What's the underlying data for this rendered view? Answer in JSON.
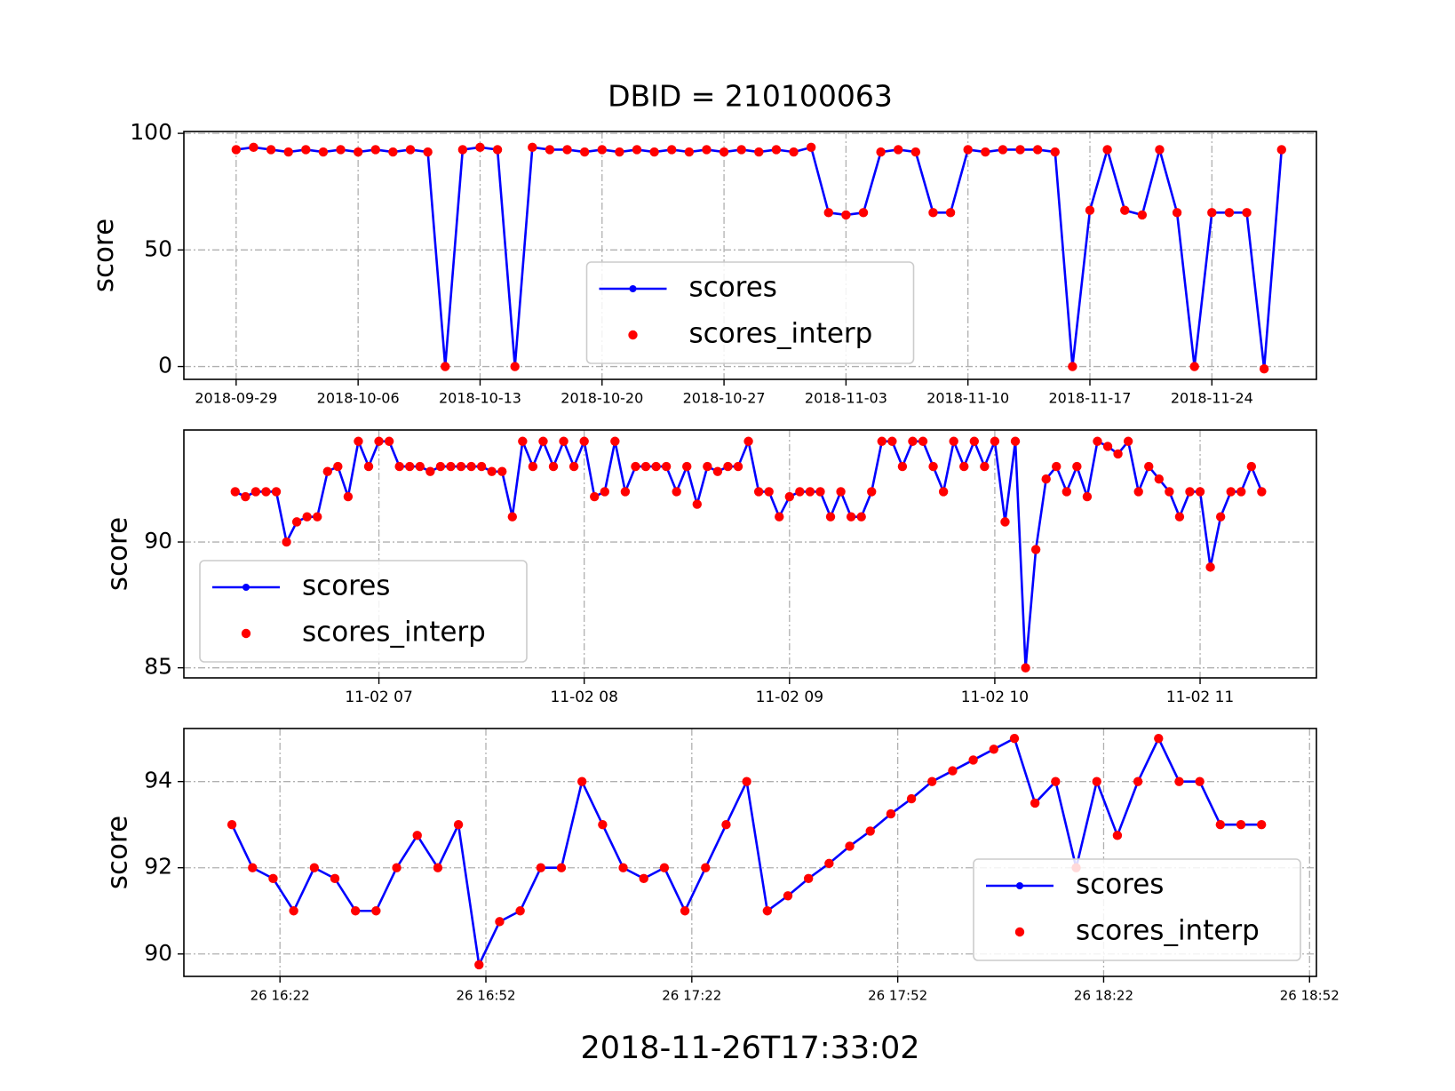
{
  "chart_data": [
    {
      "type": "line",
      "title": "DBID = 210100063",
      "ylabel": "score",
      "grid": true,
      "legend": "lower center",
      "xlim": [
        "2018-09-26",
        "2018-11-30"
      ],
      "ylim": [
        -5.5,
        100.8
      ],
      "xticks": [
        "2018-09-29",
        "2018-10-06",
        "2018-10-13",
        "2018-10-20",
        "2018-10-27",
        "2018-11-03",
        "2018-11-10",
        "2018-11-17",
        "2018-11-24"
      ],
      "yticks": [
        0,
        50,
        100
      ],
      "x": [
        "2018-09-29",
        "2018-09-30",
        "2018-10-01",
        "2018-10-02",
        "2018-10-03",
        "2018-10-04",
        "2018-10-05",
        "2018-10-06",
        "2018-10-07",
        "2018-10-08",
        "2018-10-09",
        "2018-10-10",
        "2018-10-11",
        "2018-10-12",
        "2018-10-13",
        "2018-10-14",
        "2018-10-15",
        "2018-10-16",
        "2018-10-17",
        "2018-10-18",
        "2018-10-19",
        "2018-10-20",
        "2018-10-21",
        "2018-10-22",
        "2018-10-23",
        "2018-10-24",
        "2018-10-25",
        "2018-10-26",
        "2018-10-27",
        "2018-10-28",
        "2018-10-29",
        "2018-10-30",
        "2018-10-31",
        "2018-11-01",
        "2018-11-02",
        "2018-11-03",
        "2018-11-04",
        "2018-11-05",
        "2018-11-06",
        "2018-11-07",
        "2018-11-08",
        "2018-11-09",
        "2018-11-10",
        "2018-11-11",
        "2018-11-12",
        "2018-11-13",
        "2018-11-14",
        "2018-11-15",
        "2018-11-16",
        "2018-11-17",
        "2018-11-18",
        "2018-11-19",
        "2018-11-20",
        "2018-11-21",
        "2018-11-22",
        "2018-11-23",
        "2018-11-24",
        "2018-11-25",
        "2018-11-26",
        "2018-11-27",
        "2018-11-28"
      ],
      "series": [
        {
          "name": "scores",
          "color": "#0000ff",
          "line": true,
          "values": [
            93,
            94,
            93,
            92,
            93,
            92,
            93,
            92,
            93,
            92,
            93,
            92,
            0,
            93,
            94,
            93,
            0,
            94,
            93,
            93,
            92,
            93,
            92,
            93,
            92,
            93,
            92,
            93,
            92,
            93,
            92,
            93,
            92,
            94,
            66,
            65,
            66,
            92,
            93,
            92,
            66,
            66,
            93,
            92,
            93,
            93,
            93,
            92,
            0,
            67,
            93,
            67,
            65,
            93,
            66,
            0,
            66,
            66,
            66,
            -1,
            93
          ]
        },
        {
          "name": "scores_interp",
          "color": "#ff0000",
          "line": false,
          "values": [
            93,
            94,
            93,
            92,
            93,
            92,
            93,
            92,
            93,
            92,
            93,
            92,
            0,
            93,
            94,
            93,
            0,
            94,
            93,
            93,
            92,
            93,
            92,
            93,
            92,
            93,
            92,
            93,
            92,
            93,
            92,
            93,
            92,
            94,
            66,
            65,
            66,
            92,
            93,
            92,
            66,
            66,
            93,
            92,
            93,
            93,
            93,
            92,
            0,
            67,
            93,
            67,
            65,
            93,
            66,
            0,
            66,
            66,
            66,
            -1,
            93
          ]
        }
      ]
    },
    {
      "type": "line",
      "ylabel": "score",
      "grid": true,
      "legend": "lower left",
      "xlim": [
        "11-02 06:03",
        "11-02 11:34"
      ],
      "ylim": [
        84.6,
        94.45
      ],
      "xticks": [
        "11-02 07",
        "11-02 08",
        "11-02 09",
        "11-02 10",
        "11-02 11"
      ],
      "yticks": [
        85,
        90
      ],
      "x": [
        "11-02 06:18",
        "11-02 06:21",
        "11-02 06:24",
        "11-02 06:27",
        "11-02 06:30",
        "11-02 06:33",
        "11-02 06:36",
        "11-02 06:39",
        "11-02 06:42",
        "11-02 06:45",
        "11-02 06:48",
        "11-02 06:51",
        "11-02 06:54",
        "11-02 06:57",
        "11-02 07:00",
        "11-02 07:03",
        "11-02 07:06",
        "11-02 07:09",
        "11-02 07:12",
        "11-02 07:15",
        "11-02 07:18",
        "11-02 07:21",
        "11-02 07:24",
        "11-02 07:27",
        "11-02 07:30",
        "11-02 07:33",
        "11-02 07:36",
        "11-02 07:39",
        "11-02 07:42",
        "11-02 07:45",
        "11-02 07:48",
        "11-02 07:51",
        "11-02 07:54",
        "11-02 07:57",
        "11-02 08:00",
        "11-02 08:03",
        "11-02 08:06",
        "11-02 08:09",
        "11-02 08:12",
        "11-02 08:15",
        "11-02 08:18",
        "11-02 08:21",
        "11-02 08:24",
        "11-02 08:27",
        "11-02 08:30",
        "11-02 08:33",
        "11-02 08:36",
        "11-02 08:39",
        "11-02 08:42",
        "11-02 08:45",
        "11-02 08:48",
        "11-02 08:51",
        "11-02 08:54",
        "11-02 08:57",
        "11-02 09:00",
        "11-02 09:03",
        "11-02 09:06",
        "11-02 09:09",
        "11-02 09:12",
        "11-02 09:15",
        "11-02 09:18",
        "11-02 09:21",
        "11-02 09:24",
        "11-02 09:27",
        "11-02 09:30",
        "11-02 09:33",
        "11-02 09:36",
        "11-02 09:39",
        "11-02 09:42",
        "11-02 09:45",
        "11-02 09:48",
        "11-02 09:51",
        "11-02 09:54",
        "11-02 09:57",
        "11-02 10:00",
        "11-02 10:03",
        "11-02 10:06",
        "11-02 10:09",
        "11-02 10:12",
        "11-02 10:15",
        "11-02 10:18",
        "11-02 10:21",
        "11-02 10:24",
        "11-02 10:27",
        "11-02 10:30",
        "11-02 10:33",
        "11-02 10:36",
        "11-02 10:39",
        "11-02 10:42",
        "11-02 10:45",
        "11-02 10:48",
        "11-02 10:51",
        "11-02 10:54",
        "11-02 10:57",
        "11-02 11:00",
        "11-02 11:03",
        "11-02 11:06",
        "11-02 11:09",
        "11-02 11:12",
        "11-02 11:15",
        "11-02 11:18"
      ],
      "series": [
        {
          "name": "scores",
          "color": "#0000ff",
          "line": true,
          "values": [
            92,
            91.8,
            92,
            92,
            92,
            90,
            90.8,
            91,
            91,
            92.8,
            93,
            91.8,
            94,
            93,
            94,
            94,
            93,
            93,
            93,
            92.8,
            93,
            93,
            93,
            93,
            93,
            92.8,
            92.8,
            91,
            94,
            93,
            94,
            93,
            94,
            93,
            94,
            91.8,
            92,
            94,
            92,
            93,
            93,
            93,
            93,
            92,
            93,
            91.5,
            93,
            92.8,
            93,
            93,
            94,
            92,
            92,
            91,
            91.8,
            92,
            92,
            92,
            91,
            92,
            91,
            91,
            92,
            94,
            94,
            93,
            94,
            94,
            93,
            92,
            94,
            93,
            94,
            93,
            94,
            90.8,
            94,
            85,
            89.7,
            92.5,
            93,
            92,
            93,
            91.8,
            94,
            93.8,
            93.5,
            94,
            92,
            93,
            92.5,
            92,
            91,
            92,
            92,
            89,
            91,
            92,
            92,
            93,
            92
          ]
        },
        {
          "name": "scores_interp",
          "color": "#ff0000",
          "line": false,
          "values": [
            92,
            91.8,
            92,
            92,
            92,
            90,
            90.8,
            91,
            91,
            92.8,
            93,
            91.8,
            94,
            93,
            94,
            94,
            93,
            93,
            93,
            92.8,
            93,
            93,
            93,
            93,
            93,
            92.8,
            92.8,
            91,
            94,
            93,
            94,
            93,
            94,
            93,
            94,
            91.8,
            92,
            94,
            92,
            93,
            93,
            93,
            93,
            92,
            93,
            91.5,
            93,
            92.8,
            93,
            93,
            94,
            92,
            92,
            91,
            91.8,
            92,
            92,
            92,
            91,
            92,
            91,
            91,
            92,
            94,
            94,
            93,
            94,
            94,
            93,
            92,
            94,
            93,
            94,
            93,
            94,
            90.8,
            94,
            85,
            89.7,
            92.5,
            93,
            92,
            93,
            91.8,
            94,
            93.8,
            93.5,
            94,
            92,
            93,
            92.5,
            92,
            91,
            92,
            92,
            89,
            91,
            92,
            92,
            93,
            92
          ]
        }
      ]
    },
    {
      "type": "line",
      "ylabel": "score",
      "xlabel": "2018-11-26T17:33:02",
      "grid": true,
      "legend": "lower right",
      "xlim": [
        "26 16:08",
        "26 18:53"
      ],
      "ylim": [
        89.48,
        95.23
      ],
      "xticks": [
        "26 16:22",
        "26 16:52",
        "26 17:22",
        "26 17:52",
        "26 18:22",
        "26 18:52"
      ],
      "yticks": [
        90,
        92,
        94
      ],
      "x": [
        "26 16:15",
        "26 16:18",
        "26 16:21",
        "26 16:24",
        "26 16:27",
        "26 16:30",
        "26 16:33",
        "26 16:36",
        "26 16:39",
        "26 16:42",
        "26 16:45",
        "26 16:48",
        "26 16:51",
        "26 16:54",
        "26 16:57",
        "26 17:00",
        "26 17:03",
        "26 17:06",
        "26 17:09",
        "26 17:12",
        "26 17:15",
        "26 17:18",
        "26 17:21",
        "26 17:24",
        "26 17:27",
        "26 17:30",
        "26 17:33",
        "26 17:36",
        "26 17:39",
        "26 17:42",
        "26 17:45",
        "26 17:48",
        "26 17:51",
        "26 17:54",
        "26 17:57",
        "26 18:00",
        "26 18:03",
        "26 18:06",
        "26 18:09",
        "26 18:12",
        "26 18:15",
        "26 18:18",
        "26 18:21",
        "26 18:24",
        "26 18:27",
        "26 18:30",
        "26 18:33",
        "26 18:36",
        "26 18:39",
        "26 18:42",
        "26 18:45"
      ],
      "series": [
        {
          "name": "scores",
          "color": "#0000ff",
          "line": true,
          "values": [
            93,
            92,
            91.75,
            91,
            92,
            91.75,
            91,
            91,
            92,
            92.75,
            92,
            93,
            89.75,
            90.75,
            91,
            92,
            92,
            94,
            93,
            92,
            91.75,
            92,
            91,
            92,
            93,
            94,
            91,
            91.35,
            91.75,
            92.1,
            92.5,
            92.85,
            93.25,
            93.6,
            94,
            94.25,
            94.5,
            94.75,
            95,
            93.5,
            94,
            92,
            94,
            92.75,
            94,
            95,
            94,
            94,
            93,
            93,
            93
          ]
        },
        {
          "name": "scores_interp",
          "color": "#ff0000",
          "line": false,
          "values": [
            93,
            92,
            91.75,
            91,
            92,
            91.75,
            91,
            91,
            92,
            92.75,
            92,
            93,
            89.75,
            90.75,
            91,
            92,
            92,
            94,
            93,
            92,
            91.75,
            92,
            91,
            92,
            93,
            94,
            91,
            91.35,
            91.75,
            92.1,
            92.5,
            92.85,
            93.25,
            93.6,
            94,
            94.25,
            94.5,
            94.75,
            95,
            93.5,
            94,
            92,
            94,
            92.75,
            94,
            95,
            94,
            94,
            93,
            93,
            93
          ]
        }
      ]
    }
  ]
}
